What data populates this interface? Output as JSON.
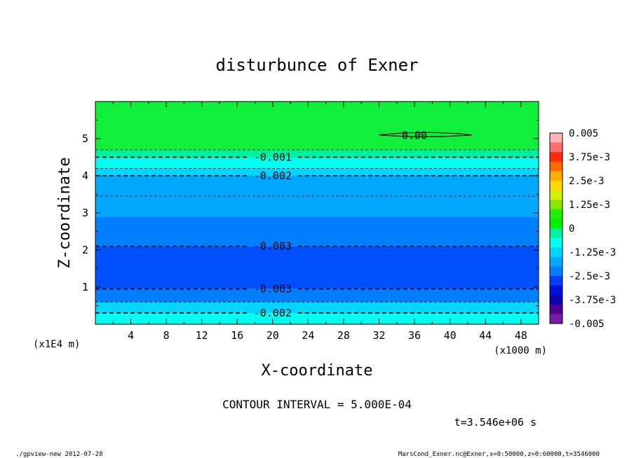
{
  "chart_data": {
    "type": "contour",
    "title": "disturbunce of Exner",
    "xlabel": "X-coordinate",
    "ylabel": "Z-coordinate",
    "x_unit": "(x1000 m)",
    "y_unit": "(x1E4 m)",
    "x_ticks": [
      4,
      8,
      12,
      16,
      20,
      24,
      28,
      32,
      36,
      40,
      44,
      48
    ],
    "y_ticks": [
      1,
      2,
      3,
      4,
      5
    ],
    "xlim": [
      0,
      50
    ],
    "ylim": [
      0,
      6
    ],
    "colorbar": {
      "labels": [
        "0.005",
        "3.75e-3",
        "2.5e-3",
        "1.25e-3",
        "0",
        "-1.25e-3",
        "-2.5e-3",
        "-3.75e-3",
        "-0.005"
      ],
      "levels": [
        0.005,
        0.00375,
        0.0025,
        0.00125,
        0,
        -0.00125,
        -0.0025,
        -0.00375,
        -0.005
      ],
      "colors": [
        "#ffb4b4",
        "#ff6e6e",
        "#ff2a0a",
        "#ff6a00",
        "#ffab00",
        "#ffd800",
        "#d8f000",
        "#88e800",
        "#1ef000",
        "#00f000",
        "#00f0a0",
        "#00ffee",
        "#00d4ff",
        "#00a8ff",
        "#0080ff",
        "#0040ff",
        "#0010e0",
        "#1000b0",
        "#500090",
        "#7a1aa8"
      ]
    },
    "bands": [
      {
        "z_bottom": 4.7,
        "z_top": 6.0,
        "color": "#10f03a"
      },
      {
        "z_bottom": 4.5,
        "z_top": 4.7,
        "color": "#00f0a0"
      },
      {
        "z_bottom": 4.2,
        "z_top": 4.5,
        "color": "#00ffee"
      },
      {
        "z_bottom": 4.0,
        "z_top": 4.2,
        "color": "#00d4ff"
      },
      {
        "z_bottom": 2.9,
        "z_top": 4.0,
        "color": "#00a8ff"
      },
      {
        "z_bottom": 2.1,
        "z_top": 2.9,
        "color": "#0080ff"
      },
      {
        "z_bottom": 0.95,
        "z_top": 2.1,
        "color": "#0050ff"
      },
      {
        "z_bottom": 0.6,
        "z_top": 0.95,
        "color": "#0080ff"
      },
      {
        "z_bottom": 0.3,
        "z_top": 0.6,
        "color": "#00d4ff"
      },
      {
        "z_bottom": 0.0,
        "z_top": 0.3,
        "color": "#00ffee"
      }
    ],
    "contours": [
      {
        "z": 4.7,
        "label": "",
        "major": false
      },
      {
        "z": 4.5,
        "label": "-0.001",
        "major": true
      },
      {
        "z": 4.2,
        "label": "",
        "major": false
      },
      {
        "z": 4.0,
        "label": "-0.002",
        "major": true
      },
      {
        "z": 3.45,
        "label": "",
        "major": false
      },
      {
        "z": 2.1,
        "label": "-0.003",
        "major": true
      },
      {
        "z": 0.95,
        "label": "-0.003",
        "major": true
      },
      {
        "z": 0.6,
        "label": "",
        "major": false
      },
      {
        "z": 0.3,
        "label": "-0.002",
        "major": true
      }
    ],
    "closed_contour": {
      "x_range": [
        32,
        42.5
      ],
      "z": 5.1,
      "label": "0.00"
    },
    "contour_interval_text": "CONTOUR INTERVAL = 5.000E-04",
    "time_text": "t=3.546e+06 s",
    "footer_left": "./gpview-new   2012-07-28",
    "footer_right": "MarsCond_Exner.nc@Exner,x=0:50000,z=0:60000,t=3546000"
  }
}
